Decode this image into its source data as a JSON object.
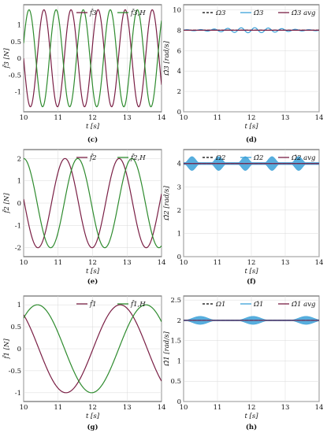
{
  "chart_data": [
    {
      "type": "line",
      "panel": "top-left",
      "caption": "(c)",
      "xlabel": "t [s]",
      "ylabel": "f̂3 [N]",
      "xlim": [
        10,
        14
      ],
      "ylim": [
        -1.6,
        1.6
      ],
      "xticks": [
        10,
        11,
        12,
        13,
        14
      ],
      "yticks": [
        -1,
        -0.5,
        0,
        0.5,
        1
      ],
      "ytick_labels": [
        "-1",
        "-0.5",
        "0",
        "0.5",
        "1"
      ],
      "grid": true,
      "legend_placement": "top-right",
      "series": [
        {
          "name": "f̂3",
          "color": "#7a1f45",
          "shape": "sine",
          "amplitude": 1.45,
          "frequency_hz": 1.273,
          "phase_at_10": 0.0,
          "sign": -1
        },
        {
          "name": "f̂3,H",
          "color": "#2e8b2e",
          "shape": "sine",
          "amplitude": 1.45,
          "frequency_hz": 1.273,
          "phase_at_10": 0.55,
          "sign": -1
        }
      ]
    },
    {
      "type": "line",
      "panel": "top-right",
      "caption": "(d)",
      "xlabel": "t [s]",
      "ylabel": "Ω̂3 [rad/s]",
      "xlim": [
        10,
        14
      ],
      "ylim": [
        0,
        10.5
      ],
      "xticks": [
        10,
        11,
        12,
        13,
        14
      ],
      "yticks": [
        0,
        2,
        4,
        6,
        8,
        10
      ],
      "ytick_labels": [
        "0",
        "2",
        "4",
        "6",
        "8",
        "10"
      ],
      "grid": true,
      "legend_placement": "top-right",
      "series": [
        {
          "name": "Ω3",
          "color": "#000000",
          "dash": "dashed",
          "constant": 8.0
        },
        {
          "name": "Ω̂3",
          "color": "#3aa0d8",
          "mean": 8.0,
          "ripple": 0.25,
          "ripple_freq_hz": 2.5
        },
        {
          "name": "Ω̂3 avg",
          "color": "#7a1f45",
          "constant": 8.0
        }
      ]
    },
    {
      "type": "line",
      "panel": "middle-left",
      "caption": "(e)",
      "xlabel": "t [s]",
      "ylabel": "f̂2 [N]",
      "xlim": [
        10,
        14
      ],
      "ylim": [
        -2.4,
        2.4
      ],
      "xticks": [
        10,
        11,
        12,
        13,
        14
      ],
      "yticks": [
        -2,
        -1,
        0,
        1,
        2
      ],
      "ytick_labels": [
        "-2",
        "-1",
        "0",
        "1",
        "2"
      ],
      "grid": true,
      "legend_placement": "top-right",
      "series": [
        {
          "name": "f̂2",
          "color": "#7a1f45",
          "shape": "cos",
          "amplitude": 2.0,
          "frequency_hz": 0.637,
          "peak_t": 11.2
        },
        {
          "name": "f̂2,H",
          "color": "#2e8b2e",
          "shape": "cos",
          "amplitude": 2.0,
          "frequency_hz": 0.637,
          "peak_t": 10.0
        }
      ]
    },
    {
      "type": "line",
      "panel": "middle-right",
      "caption": "(f)",
      "xlabel": "t [s]",
      "ylabel": "Ω̂2 [rad/s]",
      "xlim": [
        10,
        14
      ],
      "ylim": [
        0,
        4.6
      ],
      "xticks": [
        10,
        11,
        12,
        13,
        14
      ],
      "yticks": [
        0,
        1,
        2,
        3,
        4
      ],
      "ytick_labels": [
        "0",
        "1",
        "2",
        "3",
        "4"
      ],
      "grid": true,
      "legend_placement": "top-right",
      "series": [
        {
          "name": "Ω2",
          "color": "#000000",
          "dash": "dashed",
          "constant": 4.0
        },
        {
          "name": "Ω̂2",
          "color": "#3aa0d8",
          "mean": 4.0,
          "band": 0.3,
          "band_freq_hz": 1.27
        },
        {
          "name": "Ω̂2 avg",
          "color": "#7a1f45",
          "constant": 4.0
        }
      ]
    },
    {
      "type": "line",
      "panel": "bottom-left",
      "caption": "(g)",
      "xlabel": "t [s]",
      "ylabel": "f̂1 [N]",
      "xlim": [
        10,
        14
      ],
      "ylim": [
        -1.2,
        1.2
      ],
      "xticks": [
        10,
        11,
        12,
        13,
        14
      ],
      "yticks": [
        -1,
        -0.5,
        0,
        0.5,
        1
      ],
      "ytick_labels": [
        "-1",
        "-0.5",
        "0",
        "0.5",
        "1"
      ],
      "grid": true,
      "legend_placement": "top-right",
      "series": [
        {
          "name": "f̂1",
          "color": "#7a1f45",
          "shape": "cos",
          "amplitude": 1.0,
          "frequency_hz": 0.318,
          "peak_t": 12.8
        },
        {
          "name": "f̂1,H",
          "color": "#2e8b2e",
          "shape": "cos",
          "amplitude": 1.0,
          "frequency_hz": 0.318,
          "peak_t": 10.4
        }
      ]
    },
    {
      "type": "line",
      "panel": "bottom-right",
      "caption": "(h)",
      "xlabel": "t [s]",
      "ylabel": "Ω̂1 [rad/s]",
      "xlim": [
        10,
        14
      ],
      "ylim": [
        0,
        2.6
      ],
      "xticks": [
        10,
        11,
        12,
        13,
        14
      ],
      "yticks": [
        0,
        0.5,
        1,
        1.5,
        2,
        2.5
      ],
      "ytick_labels": [
        "0",
        "0.5",
        "1",
        "1.5",
        "2",
        "2.5"
      ],
      "grid": true,
      "legend_placement": "top-right",
      "series": [
        {
          "name": "Ω1",
          "color": "#000000",
          "dash": "dashed",
          "constant": 2.0
        },
        {
          "name": "Ω̂1",
          "color": "#3aa0d8",
          "mean": 2.0,
          "band": 0.1,
          "band_freq_hz": 0.64
        },
        {
          "name": "Ω̂1 avg",
          "color": "#7a1f45",
          "constant": 2.0
        }
      ]
    }
  ]
}
